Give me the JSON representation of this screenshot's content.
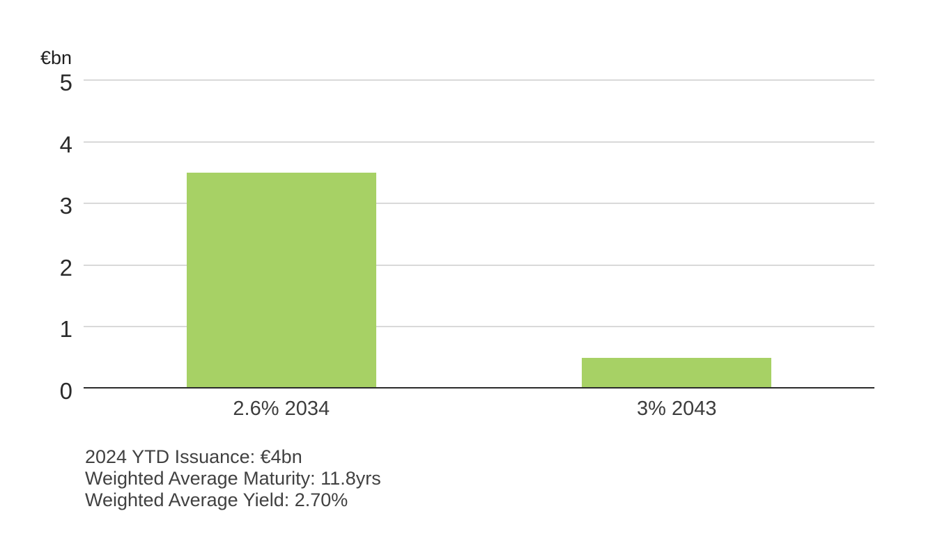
{
  "chart_data": {
    "type": "bar",
    "categories": [
      "2.6% 2034",
      "3% 2043"
    ],
    "values": [
      3.5,
      0.5
    ],
    "title": "",
    "xlabel": "",
    "ylabel": "€bn",
    "ylim": [
      0,
      5
    ],
    "yticks": [
      0,
      1,
      2,
      3,
      4,
      5
    ],
    "grid": true,
    "legend": "none",
    "bar_color": "#a7d165",
    "gridline_color": "#d9d9d9",
    "axis_color": "#2b2b2b",
    "bar_band_fraction": 0.48
  },
  "annotations": {
    "lines": [
      "2024 YTD Issuance: €4bn",
      "Weighted Average Maturity: 11.8yrs",
      "Weighted Average Yield: 2.70%"
    ]
  }
}
